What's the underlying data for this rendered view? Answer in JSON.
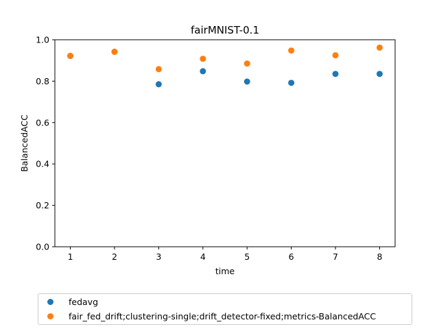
{
  "chart_data": {
    "type": "scatter",
    "title": "fairMNIST-0.1",
    "xlabel": "time",
    "ylabel": "BalancedACC",
    "xlim": [
      0.65,
      8.35
    ],
    "ylim": [
      0.0,
      1.0
    ],
    "xticks": [
      "1",
      "2",
      "3",
      "4",
      "5",
      "6",
      "7",
      "8"
    ],
    "yticks": [
      "0.0",
      "0.2",
      "0.4",
      "0.6",
      "0.8",
      "1.0"
    ],
    "grid": false,
    "legend_position": "below",
    "series": [
      {
        "name": "fedavg",
        "color": "#1f77b4",
        "x": [
          1,
          2,
          3,
          4,
          5,
          6,
          7,
          8
        ],
        "y": [
          0.922,
          0.942,
          0.785,
          0.848,
          0.798,
          0.792,
          0.835,
          0.835
        ]
      },
      {
        "name": "fair_fed_drift;clustering-single;drift_detector-fixed;metrics-BalancedACC",
        "color": "#ff7f0e",
        "x": [
          1,
          2,
          3,
          4,
          5,
          6,
          7,
          8
        ],
        "y": [
          0.922,
          0.942,
          0.858,
          0.908,
          0.885,
          0.948,
          0.925,
          0.962
        ]
      }
    ]
  }
}
